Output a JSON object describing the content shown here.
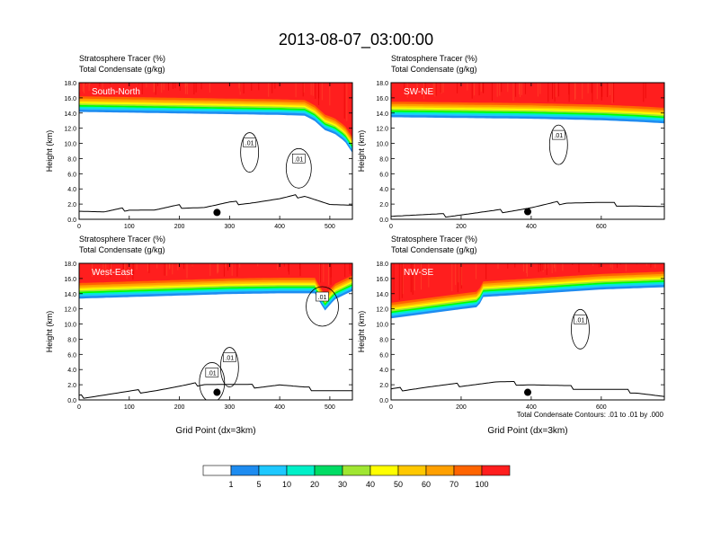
{
  "figure_title": "2013-08-07_03:00:00",
  "colors": {
    "levels": [
      "#ffffff",
      "#1e8cf0",
      "#1ec8ff",
      "#00f0c8",
      "#00dc64",
      "#00ff00",
      "#a0e632",
      "#ffff00",
      "#ffc800",
      "#ffa000",
      "#ff6400",
      "#ff1e1e"
    ],
    "frame": "#000000"
  },
  "colorbar": {
    "labels": [
      "1",
      "5",
      "10",
      "20",
      "30",
      "40",
      "50",
      "60",
      "70",
      "100"
    ]
  },
  "contour_info": "Total Condensate Contours: .01 to .01 by .000",
  "chart_data": [
    {
      "type": "heatmap",
      "panel_label": "South-North",
      "title_line1": "Stratosphere Tracer   (%)",
      "title_line2": "Total Condensate   (g/kg)",
      "ylabel": "Height (km)",
      "xlabel": "",
      "xlim": [
        0,
        545
      ],
      "ylim": [
        0,
        18
      ],
      "xticks": [
        "0",
        "100",
        "200",
        "300",
        "400",
        "500"
      ],
      "xtick_values": [
        0,
        100,
        200,
        300,
        400,
        500
      ],
      "yticks": [
        "0.0",
        "2.0",
        "4.0",
        "6.0",
        "8.0",
        "10.0",
        "12.0",
        "14.0",
        "16.0",
        "18.0"
      ],
      "tracer_base_km": [
        [
          0,
          14.4
        ],
        [
          100,
          14.3
        ],
        [
          200,
          14.2
        ],
        [
          300,
          14.1
        ],
        [
          400,
          14.0
        ],
        [
          450,
          13.9
        ],
        [
          470,
          13.2
        ],
        [
          490,
          12.0
        ],
        [
          510,
          11.5
        ],
        [
          530,
          10.5
        ],
        [
          545,
          9.0
        ]
      ],
      "terrain_km": [
        [
          0,
          1.2
        ],
        [
          50,
          0.9
        ],
        [
          100,
          1.4
        ],
        [
          150,
          1.2
        ],
        [
          200,
          1.7
        ],
        [
          250,
          1.6
        ],
        [
          300,
          2.1
        ],
        [
          350,
          2.3
        ],
        [
          400,
          2.6
        ],
        [
          450,
          3.2
        ],
        [
          500,
          1.9
        ],
        [
          545,
          1.6
        ]
      ],
      "point_marker": [
        275,
        0.9
      ],
      "contour_labels": [
        {
          "text": ".01",
          "x": 340,
          "y": 10.0
        },
        {
          "text": ".01",
          "x": 438,
          "y": 7.9
        }
      ]
    },
    {
      "type": "heatmap",
      "panel_label": "SW-NE",
      "title_line1": "Stratosphere Tracer   (%)",
      "title_line2": "Total Condensate   (g/kg)",
      "ylabel": "Height (km)",
      "xlabel": "",
      "xlim": [
        0,
        780
      ],
      "ylim": [
        0,
        18
      ],
      "xticks": [
        "0",
        "200",
        "400",
        "600"
      ],
      "xtick_values": [
        0,
        200,
        400,
        600
      ],
      "yticks": [
        "0.0",
        "2.0",
        "4.0",
        "6.0",
        "8.0",
        "10.0",
        "12.0",
        "14.0",
        "16.0",
        "18.0"
      ],
      "tracer_base_km": [
        [
          0,
          13.7
        ],
        [
          200,
          13.6
        ],
        [
          400,
          13.5
        ],
        [
          600,
          13.3
        ],
        [
          700,
          13.1
        ],
        [
          780,
          12.9
        ]
      ],
      "terrain_km": [
        [
          0,
          0.6
        ],
        [
          150,
          0.5
        ],
        [
          300,
          1.0
        ],
        [
          400,
          1.5
        ],
        [
          500,
          2.3
        ],
        [
          600,
          2.1
        ],
        [
          700,
          1.8
        ],
        [
          780,
          1.5
        ]
      ],
      "point_marker": [
        390,
        1.0
      ],
      "contour_labels": [
        {
          "text": ".01",
          "x": 478,
          "y": 11.0
        }
      ]
    },
    {
      "type": "heatmap",
      "panel_label": "West-East",
      "title_line1": "Stratosphere Tracer   (%)",
      "title_line2": "Total Condensate   (g/kg)",
      "ylabel": "Height (km)",
      "xlabel": "Grid Point (dx=3km)",
      "xlim": [
        0,
        545
      ],
      "ylim": [
        0,
        18
      ],
      "xticks": [
        "0",
        "100",
        "200",
        "300",
        "400",
        "500"
      ],
      "xtick_values": [
        0,
        100,
        200,
        300,
        400,
        500
      ],
      "yticks": [
        "0.0",
        "2.0",
        "4.0",
        "6.0",
        "8.0",
        "10.0",
        "12.0",
        "14.0",
        "16.0",
        "18.0"
      ],
      "tracer_base_km": [
        [
          0,
          13.6
        ],
        [
          100,
          13.8
        ],
        [
          200,
          14.0
        ],
        [
          300,
          14.2
        ],
        [
          400,
          14.3
        ],
        [
          470,
          14.3
        ],
        [
          490,
          12.0
        ],
        [
          510,
          13.5
        ],
        [
          545,
          14.6
        ]
      ],
      "terrain_km": [
        [
          0,
          0.4
        ],
        [
          50,
          0.7
        ],
        [
          100,
          1.0
        ],
        [
          150,
          1.3
        ],
        [
          200,
          1.7
        ],
        [
          250,
          2.2
        ],
        [
          300,
          2.0
        ],
        [
          350,
          1.8
        ],
        [
          400,
          2.0
        ],
        [
          450,
          1.5
        ],
        [
          500,
          1.3
        ],
        [
          545,
          1.1
        ]
      ],
      "point_marker": [
        275,
        1.0
      ],
      "contour_labels": [
        {
          "text": ".01",
          "x": 300,
          "y": 5.5
        },
        {
          "text": ".01",
          "x": 265,
          "y": 3.5
        },
        {
          "text": ".01",
          "x": 485,
          "y": 13.5
        }
      ]
    },
    {
      "type": "heatmap",
      "panel_label": "NW-SE",
      "title_line1": "Stratosphere Tracer   (%)",
      "title_line2": "Total Condensate   (g/kg)",
      "ylabel": "Height (km)",
      "xlabel": "Grid Point (dx=3km)",
      "xlim": [
        0,
        780
      ],
      "ylim": [
        0,
        18
      ],
      "xticks": [
        "0",
        "200",
        "400",
        "600"
      ],
      "xtick_values": [
        0,
        200,
        400,
        600
      ],
      "yticks": [
        "0.0",
        "2.0",
        "4.0",
        "6.0",
        "8.0",
        "10.0",
        "12.0",
        "14.0",
        "16.0",
        "18.0"
      ],
      "tracer_base_km": [
        [
          0,
          11.0
        ],
        [
          100,
          11.6
        ],
        [
          200,
          12.2
        ],
        [
          250,
          12.5
        ],
        [
          260,
          13.8
        ],
        [
          400,
          14.2
        ],
        [
          600,
          14.8
        ],
        [
          780,
          15.1
        ]
      ],
      "terrain_km": [
        [
          0,
          1.3
        ],
        [
          100,
          1.7
        ],
        [
          200,
          2.0
        ],
        [
          300,
          2.3
        ],
        [
          400,
          2.1
        ],
        [
          500,
          1.7
        ],
        [
          600,
          1.4
        ],
        [
          700,
          1.1
        ],
        [
          780,
          0.4
        ]
      ],
      "point_marker": [
        390,
        1.0
      ],
      "contour_labels": [
        {
          "text": ".01",
          "x": 540,
          "y": 10.5
        }
      ]
    }
  ]
}
